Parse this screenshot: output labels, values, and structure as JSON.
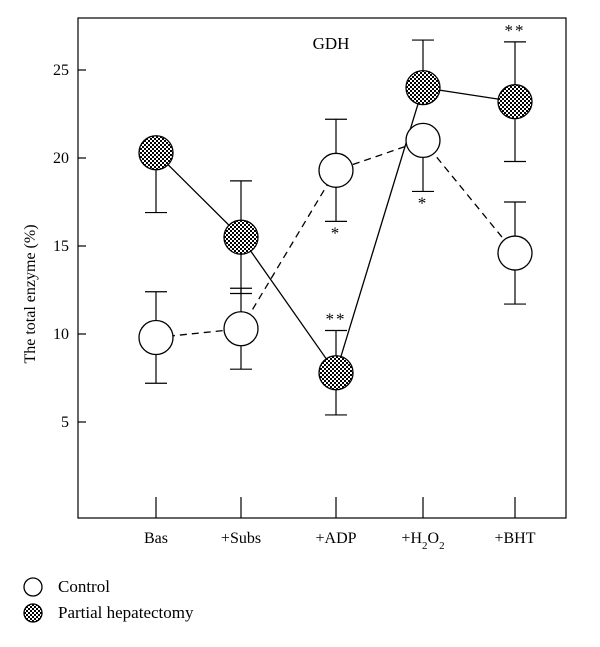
{
  "chart_data": {
    "type": "line",
    "title": "GDH",
    "xlabel": "",
    "ylabel": "The total enzyme (%)",
    "ylim": [
      0,
      28
    ],
    "yticks": [
      5,
      10,
      15,
      20,
      25
    ],
    "categories": [
      "Bas",
      "+Subs",
      "+ADP",
      "+H2O2",
      "+BHT"
    ],
    "series": [
      {
        "name": "Control",
        "line_style": "dashed",
        "marker": "open-circle",
        "values": [
          9.8,
          10.3,
          19.3,
          21.0,
          14.6
        ],
        "error": [
          2.6,
          2.3,
          2.9,
          2.9,
          2.9
        ],
        "error_direction": [
          "both",
          "both",
          "both",
          "below",
          "both"
        ],
        "annotations": [
          "",
          "",
          "*",
          "*",
          ""
        ]
      },
      {
        "name": "Partial hepatectomy",
        "line_style": "solid",
        "marker": "checkered-circle",
        "values": [
          20.3,
          15.5,
          7.8,
          24.0,
          23.2
        ],
        "error": [
          3.4,
          3.2,
          2.4,
          2.7,
          3.4
        ],
        "error_direction": [
          "below",
          "both",
          "both",
          "above",
          "both"
        ],
        "annotations": [
          "",
          "",
          "**",
          "",
          "**"
        ]
      }
    ],
    "grid": false,
    "legend_position": "bottom-left"
  },
  "legend": {
    "control_label": "Control",
    "hepatectomy_label": "Partial hepatectomy"
  }
}
